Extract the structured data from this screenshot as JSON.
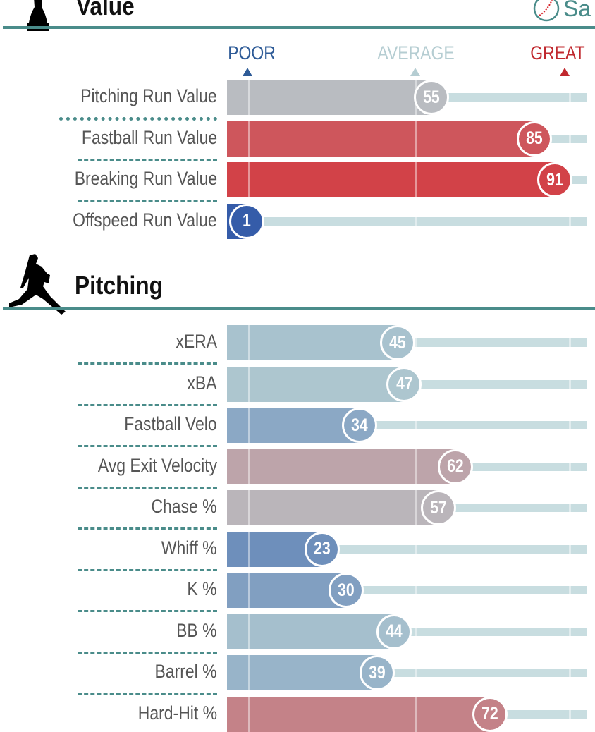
{
  "chart_data": {
    "type": "bar",
    "orientation": "horizontal",
    "xlim": [
      0,
      100
    ],
    "legend": {
      "poor": "POOR",
      "average": "AVERAGE",
      "great": "GREAT"
    },
    "palette": {
      "poor": "#325aa8",
      "average": "#b5cdd2",
      "great": "#d8232a",
      "track": "#c8dde0",
      "rule": "#4a8c8a"
    },
    "sections": [
      {
        "title": "Value",
        "icon": "trophy-icon",
        "rows": [
          {
            "label": "Pitching Run Value",
            "value": 55
          },
          {
            "label": "Fastball Run Value",
            "value": 85
          },
          {
            "label": "Breaking Run Value",
            "value": 91
          },
          {
            "label": "Offspeed Run Value",
            "value": 1
          }
        ]
      },
      {
        "title": "Pitching",
        "icon": "pitcher-icon",
        "rows": [
          {
            "label": "xERA",
            "value": 45
          },
          {
            "label": "xBA",
            "value": 47
          },
          {
            "label": "Fastball Velo",
            "value": 34
          },
          {
            "label": "Avg Exit Velocity",
            "value": 62
          },
          {
            "label": "Chase %",
            "value": 57
          },
          {
            "label": "Whiff %",
            "value": 23
          },
          {
            "label": "K %",
            "value": 30
          },
          {
            "label": "BB %",
            "value": 44
          },
          {
            "label": "Barrel %",
            "value": 39
          },
          {
            "label": "Hard-Hit %",
            "value": 72
          }
        ]
      }
    ]
  },
  "logo": {
    "text": "Sa"
  }
}
